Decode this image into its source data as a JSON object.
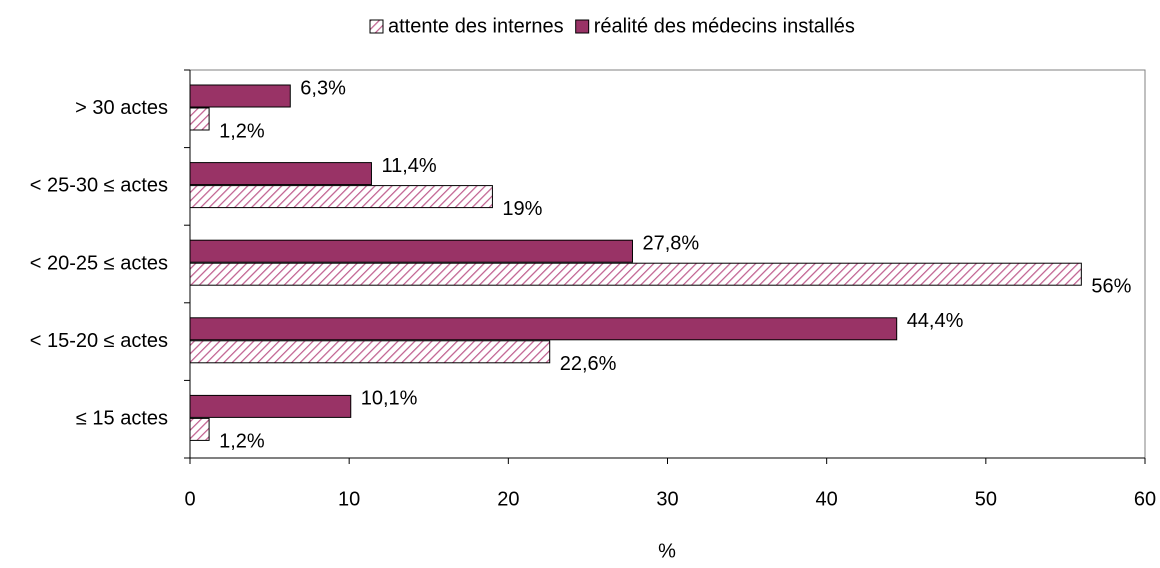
{
  "chart_data": {
    "type": "hbar",
    "x_label": "%",
    "categories": [
      "> 30 actes",
      "< 25-30 ≤ actes",
      "< 20-25 ≤ actes",
      "< 15-20 ≤ actes",
      "≤ 15 actes"
    ],
    "series": [
      {
        "name": "attente des internes",
        "color": "#c06090",
        "hatch": true,
        "values": [
          1.2,
          19,
          56,
          22.6,
          1.2
        ],
        "value_labels": [
          "1,2%",
          "19%",
          "56%",
          "22,6%",
          "1,2%"
        ]
      },
      {
        "name": "réalité des médecins installés",
        "color": "#993366",
        "hatch": false,
        "values": [
          6.3,
          11.4,
          27.8,
          44.4,
          10.1
        ],
        "value_labels": [
          "6,3%",
          "11,4%",
          "27,8%",
          "44,4%",
          "10,1%"
        ]
      }
    ],
    "xlim": [
      0,
      60
    ],
    "xticks": [
      0,
      10,
      20,
      30,
      40,
      50,
      60
    ],
    "legend": "top"
  }
}
